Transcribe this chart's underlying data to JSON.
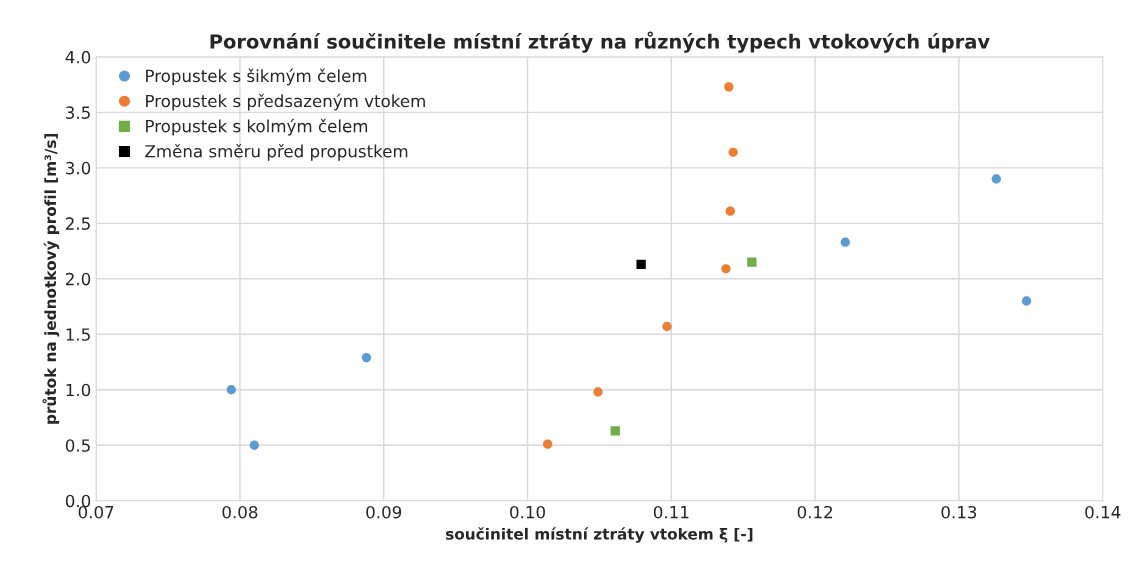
{
  "chart_data": {
    "type": "scatter",
    "title": "Porovnání součinitele místní ztráty na různých typech vtokových úprav",
    "xlabel": "součinitel místní ztráty vtokem ξ [-]",
    "ylabel": "průtok na jednotkový profil [m³/s]",
    "xlim": [
      0.07,
      0.14
    ],
    "xticks": [
      {
        "value": 0.07,
        "label": "0.07"
      },
      {
        "value": 0.08,
        "label": "0.08"
      },
      {
        "value": 0.09,
        "label": "0.09"
      },
      {
        "value": 0.1,
        "label": "0.10"
      },
      {
        "value": 0.11,
        "label": "0.11"
      },
      {
        "value": 0.12,
        "label": "0.12"
      },
      {
        "value": 0.13,
        "label": "0.13"
      },
      {
        "value": 0.14,
        "label": "0.14"
      }
    ],
    "ylim": [
      0,
      4
    ],
    "yticks": [
      {
        "value": 0,
        "label": "0.0"
      },
      {
        "value": 0.5,
        "label": "0.5"
      },
      {
        "value": 1,
        "label": "1.0"
      },
      {
        "value": 1.5,
        "label": "1.5"
      },
      {
        "value": 2,
        "label": "2.0"
      },
      {
        "value": 2.5,
        "label": "2.5"
      },
      {
        "value": 3,
        "label": "3.0"
      },
      {
        "value": 3.5,
        "label": "3.5"
      },
      {
        "value": 4,
        "label": "4.0"
      }
    ],
    "grid": true,
    "legend": "top left",
    "series": [
      {
        "name": "Propustek s šikmým čelem",
        "color": "#5b9bd5",
        "marker": "circle",
        "x": [
          0.0794,
          0.081,
          0.0888,
          0.1221,
          0.1326,
          0.1347
        ],
        "values": [
          1.0,
          0.5,
          1.29,
          2.33,
          2.9,
          1.8
        ]
      },
      {
        "name": "Propustek s předsazeným vtokem",
        "color": "#ed7d31",
        "marker": "circle",
        "x": [
          0.1014,
          0.1049,
          0.1097,
          0.1138,
          0.1141,
          0.1143,
          0.114
        ],
        "values": [
          0.51,
          0.98,
          1.57,
          2.09,
          2.61,
          3.14,
          3.73
        ]
      },
      {
        "name": "Propustek s kolmým čelem",
        "color": "#70ad47",
        "marker": "square",
        "x": [
          0.1061,
          0.1156
        ],
        "values": [
          0.63,
          2.15
        ]
      },
      {
        "name": "Změna směru před propustkem",
        "color": "#000000",
        "marker": "square",
        "x": [
          0.1079
        ],
        "values": [
          2.13
        ]
      }
    ]
  }
}
